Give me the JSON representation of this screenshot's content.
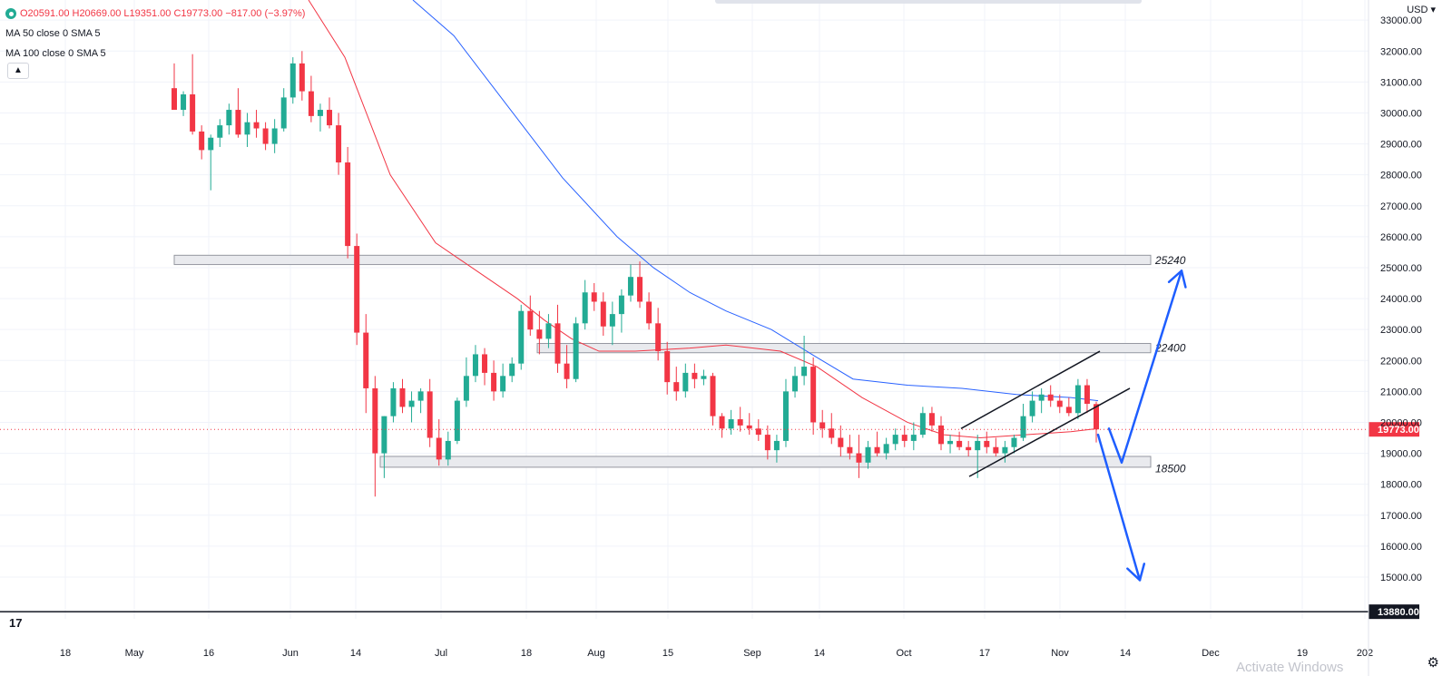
{
  "legend": {
    "ohlc": {
      "o": "O20591.00",
      "h": "H20669.00",
      "l": "L19351.00",
      "c": "C19773.00",
      "chg": "−817.00 (−3.97%)"
    },
    "ma1": "MA 50 close 0 SMA 5",
    "ma2": "MA 100 close 0 SMA 5"
  },
  "ui": {
    "currency": "USD",
    "collapse_icon": "chevron-up-icon",
    "settings_icon": "gear-icon",
    "logo_icon": "tradingview-logo-icon",
    "watermark": "Activate Windows"
  },
  "colors": {
    "up": "#22ab94",
    "down": "#f23645",
    "ma50": "#f23645",
    "ma100": "#2962ff",
    "arrow": "#1e5eff",
    "last_price": "#f23645",
    "zone_fill": "#e9eaee",
    "zone_stroke": "#9598a1"
  },
  "chart_data": {
    "type": "candlestick",
    "y_unit": "USD",
    "ylim": [
      13650,
      33650
    ],
    "x_ticks": [
      "18",
      "May",
      "16",
      "Jun",
      "14",
      "Jul",
      "18",
      "Aug",
      "15",
      "Sep",
      "14",
      "Oct",
      "17",
      "Nov",
      "14",
      "Dec",
      "19",
      "202"
    ],
    "y_ticks": [
      15000,
      16000,
      17000,
      18000,
      19000,
      20000,
      21000,
      22000,
      23000,
      24000,
      25000,
      26000,
      27000,
      28000,
      29000,
      30000,
      31000,
      32000,
      33000
    ],
    "last_price": 19773,
    "last_price_label": "19773.00",
    "extra_level": 13880,
    "extra_level_label": "13880.00",
    "zones": [
      {
        "value": 25240,
        "label": "25240",
        "top": 25400,
        "bottom": 25100,
        "start": "May 10"
      },
      {
        "value": 22400,
        "label": "22400",
        "top": 22550,
        "bottom": 22250,
        "start": "Jul 19"
      },
      {
        "value": 18500,
        "label": "18500",
        "top": 18900,
        "bottom": 18550,
        "start": "Jun 18"
      }
    ],
    "channel": {
      "upper": [
        [
          1059,
          19800
        ],
        [
          1212,
          22300
        ]
      ],
      "lower": [
        [
          1068,
          18250
        ],
        [
          1245,
          21100
        ]
      ]
    },
    "arrows": [
      {
        "from": [
          1210,
          19600
        ],
        "to": [
          1256,
          14900
        ],
        "direction": "down-target"
      },
      {
        "from": [
          1238,
          18700
        ],
        "to": [
          1302,
          24900
        ],
        "direction": "up-target"
      }
    ],
    "candles": [
      [
        30800,
        31600,
        30100,
        30100
      ],
      [
        30100,
        30700,
        29900,
        30600
      ],
      [
        30600,
        31900,
        29300,
        29400
      ],
      [
        29400,
        29600,
        28500,
        28800
      ],
      [
        28800,
        29300,
        27500,
        29200
      ],
      [
        29200,
        29800,
        28900,
        29600
      ],
      [
        29600,
        30300,
        29300,
        30100
      ],
      [
        30100,
        30800,
        29200,
        29300
      ],
      [
        29300,
        30000,
        28900,
        29700
      ],
      [
        29700,
        30100,
        29200,
        29500
      ],
      [
        29500,
        29700,
        28800,
        29000
      ],
      [
        29000,
        29800,
        28700,
        29500
      ],
      [
        29500,
        30800,
        29400,
        30500
      ],
      [
        30500,
        31800,
        30300,
        31600
      ],
      [
        31600,
        32000,
        30400,
        30700
      ],
      [
        30700,
        31200,
        29700,
        29900
      ],
      [
        29900,
        30300,
        29400,
        30100
      ],
      [
        30100,
        30500,
        29500,
        29600
      ],
      [
        29600,
        30000,
        28000,
        28400
      ],
      [
        28400,
        28900,
        25300,
        25700
      ],
      [
        25700,
        26100,
        22500,
        22900
      ],
      [
        22900,
        23500,
        20300,
        21100
      ],
      [
        21100,
        21500,
        17600,
        19000
      ],
      [
        19000,
        20200,
        18200,
        20200
      ],
      [
        20200,
        21300,
        20000,
        21100
      ],
      [
        21100,
        21400,
        20300,
        20500
      ],
      [
        20500,
        21000,
        20000,
        20700
      ],
      [
        20700,
        21100,
        20300,
        21000
      ],
      [
        21000,
        21400,
        19200,
        19500
      ],
      [
        19500,
        20100,
        18600,
        18800
      ],
      [
        18800,
        19700,
        18600,
        19400
      ],
      [
        19400,
        20800,
        19300,
        20700
      ],
      [
        20700,
        22100,
        20500,
        21500
      ],
      [
        21500,
        22500,
        21300,
        22200
      ],
      [
        22200,
        22400,
        21200,
        21600
      ],
      [
        21600,
        22000,
        20700,
        21000
      ],
      [
        21000,
        21900,
        20800,
        21500
      ],
      [
        21500,
        22100,
        21300,
        21900
      ],
      [
        21900,
        23800,
        21700,
        23600
      ],
      [
        23600,
        24100,
        22800,
        23000
      ],
      [
        23000,
        23600,
        22200,
        22700
      ],
      [
        22700,
        23500,
        22400,
        23200
      ],
      [
        23200,
        23800,
        21600,
        21900
      ],
      [
        21900,
        22500,
        21100,
        21400
      ],
      [
        21400,
        23400,
        21300,
        23200
      ],
      [
        23200,
        24600,
        23000,
        24200
      ],
      [
        24200,
        24500,
        23600,
        23900
      ],
      [
        23900,
        24200,
        22800,
        23100
      ],
      [
        23100,
        23900,
        22500,
        23500
      ],
      [
        23500,
        24300,
        22900,
        24100
      ],
      [
        24100,
        25100,
        23900,
        24700
      ],
      [
        24700,
        25200,
        23700,
        23900
      ],
      [
        23900,
        24200,
        23000,
        23200
      ],
      [
        23200,
        23700,
        22000,
        22300
      ],
      [
        22300,
        22600,
        20900,
        21300
      ],
      [
        21300,
        21800,
        20700,
        21000
      ],
      [
        21000,
        21900,
        20800,
        21600
      ],
      [
        21600,
        21900,
        21100,
        21400
      ],
      [
        21400,
        21700,
        21200,
        21500
      ],
      [
        21500,
        21600,
        19900,
        20200
      ],
      [
        20200,
        20300,
        19500,
        19800
      ],
      [
        19800,
        20400,
        19600,
        20100
      ],
      [
        20100,
        20500,
        19700,
        19900
      ],
      [
        19900,
        20300,
        19600,
        19800
      ],
      [
        19800,
        20100,
        19400,
        19600
      ],
      [
        19600,
        19900,
        18800,
        19100
      ],
      [
        19100,
        19600,
        18700,
        19400
      ],
      [
        19400,
        21400,
        19200,
        21000
      ],
      [
        21000,
        21800,
        20800,
        21500
      ],
      [
        21500,
        22800,
        21200,
        21800
      ],
      [
        21800,
        22100,
        19600,
        20000
      ],
      [
        20000,
        20400,
        19500,
        19800
      ],
      [
        19800,
        20300,
        19300,
        19500
      ],
      [
        19500,
        19900,
        18900,
        19200
      ],
      [
        19200,
        19600,
        18800,
        19000
      ],
      [
        19000,
        19600,
        18200,
        18700
      ],
      [
        18700,
        19400,
        18500,
        19200
      ],
      [
        19200,
        19700,
        18900,
        19000
      ],
      [
        19000,
        19500,
        18800,
        19300
      ],
      [
        19300,
        19800,
        19100,
        19600
      ],
      [
        19600,
        19900,
        19200,
        19400
      ],
      [
        19400,
        20000,
        19100,
        19600
      ],
      [
        19600,
        20500,
        19500,
        20300
      ],
      [
        20300,
        20500,
        19700,
        19900
      ],
      [
        19900,
        20200,
        19100,
        19300
      ],
      [
        19300,
        19600,
        19000,
        19400
      ],
      [
        19400,
        19700,
        19100,
        19200
      ],
      [
        19200,
        19400,
        18900,
        19100
      ],
      [
        19100,
        19600,
        18200,
        19400
      ],
      [
        19400,
        19700,
        19000,
        19200
      ],
      [
        19200,
        19500,
        18900,
        19000
      ],
      [
        19000,
        19400,
        18700,
        19200
      ],
      [
        19200,
        19600,
        19000,
        19500
      ],
      [
        19500,
        20600,
        19400,
        20200
      ],
      [
        20200,
        21000,
        20000,
        20700
      ],
      [
        20700,
        21100,
        20300,
        20900
      ],
      [
        20900,
        21200,
        20500,
        20700
      ],
      [
        20700,
        20900,
        20300,
        20500
      ],
      [
        20500,
        20800,
        20200,
        20300
      ],
      [
        20300,
        21400,
        20100,
        21200
      ],
      [
        21200,
        21400,
        20300,
        20600
      ],
      [
        20591,
        20669,
        19351,
        19773
      ]
    ],
    "ma50": [
      [
        340,
        33650
      ],
      [
        380,
        31800
      ],
      [
        430,
        28000
      ],
      [
        480,
        25800
      ],
      [
        520,
        25000
      ],
      [
        570,
        24000
      ],
      [
        600,
        23300
      ],
      [
        630,
        22700
      ],
      [
        660,
        22300
      ],
      [
        700,
        22300
      ],
      [
        760,
        22400
      ],
      [
        800,
        22500
      ],
      [
        860,
        22300
      ],
      [
        900,
        21800
      ],
      [
        950,
        20800
      ],
      [
        1000,
        20000
      ],
      [
        1040,
        19600
      ],
      [
        1080,
        19500
      ],
      [
        1130,
        19600
      ],
      [
        1180,
        19700
      ],
      [
        1210,
        19800
      ]
    ],
    "ma100": [
      [
        455,
        33650
      ],
      [
        500,
        32500
      ],
      [
        560,
        30200
      ],
      [
        620,
        27900
      ],
      [
        680,
        26000
      ],
      [
        720,
        25000
      ],
      [
        760,
        24200
      ],
      [
        800,
        23600
      ],
      [
        850,
        23000
      ],
      [
        900,
        22100
      ],
      [
        940,
        21400
      ],
      [
        1000,
        21200
      ],
      [
        1060,
        21100
      ],
      [
        1120,
        20900
      ],
      [
        1180,
        20800
      ],
      [
        1210,
        20700
      ]
    ]
  }
}
